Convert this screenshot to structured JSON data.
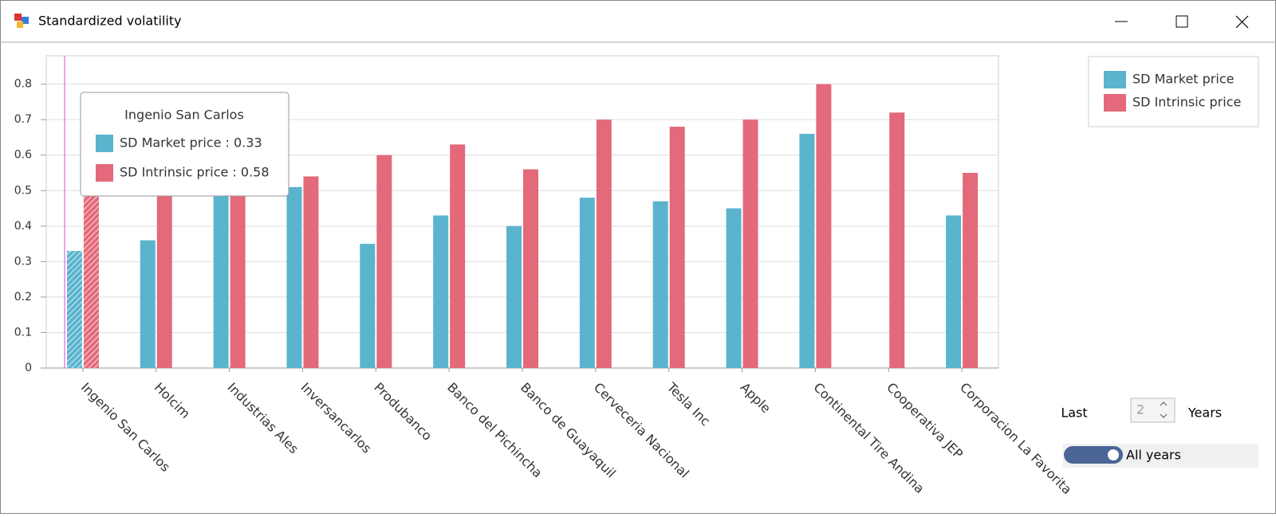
{
  "window": {
    "title": "Standardized volatility"
  },
  "chart_data": {
    "type": "bar",
    "categories": [
      "Ingenio San Carlos",
      "Holcim",
      "Industrias Ales",
      "Inversancarlos",
      "Produbanco",
      "Banco del Pichincha",
      "Banco de Guayaquil",
      "Cerveceria Nacional",
      "Tesla Inc",
      "Apple",
      "Continental Tire Andina",
      "Cooperativa JEP",
      "Corporacion La Favorita"
    ],
    "series": [
      {
        "name": "SD Market price",
        "color": "#5ab4cd",
        "values": [
          0.33,
          0.36,
          0.5,
          0.51,
          0.35,
          0.43,
          0.4,
          0.48,
          0.47,
          0.45,
          0.66,
          null,
          0.43
        ]
      },
      {
        "name": "SD Intrinsic price",
        "color": "#e4697a",
        "values": [
          0.58,
          0.55,
          0.52,
          0.54,
          0.6,
          0.63,
          0.56,
          0.7,
          0.68,
          0.7,
          0.8,
          0.72,
          0.55
        ]
      }
    ],
    "ylim": [
      0,
      0.88
    ],
    "yticks": [
      0,
      0.1,
      0.2,
      0.3,
      0.4,
      0.5,
      0.6,
      0.7,
      0.8
    ],
    "grid": true,
    "legend": "top-right",
    "tooltip": {
      "title": "Ingenio San Carlos",
      "lines": [
        "SD Market price : 0.33",
        "SD Intrinsic price : 0.58"
      ]
    }
  },
  "controls": {
    "last_label": "Last",
    "years_value": 2,
    "years_label": "Years",
    "all_years": "All years"
  }
}
